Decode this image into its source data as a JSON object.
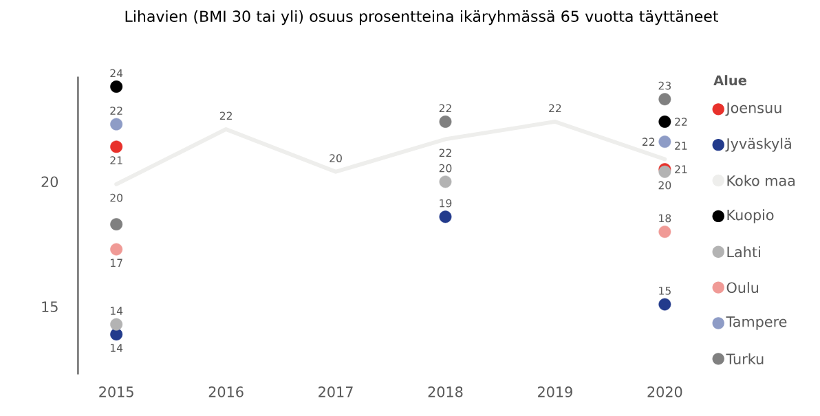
{
  "chart_data": {
    "type": "scatter",
    "title": "Lihavien (BMI 30 tai yli) osuus prosentteina ikäryhmässä 65 vuotta täyttäneet",
    "legend_title": "Alue",
    "categories": [
      "2015",
      "2016",
      "2017",
      "2018",
      "2019",
      "2020"
    ],
    "ylim": [
      12.3,
      24.2
    ],
    "yticks": [
      15,
      20
    ],
    "grid": false,
    "legend": "right",
    "marker": "circle",
    "series": [
      {
        "name": "Joensuu",
        "color": "#e8312b",
        "values": [
          21.4,
          null,
          null,
          null,
          null,
          20.5
        ],
        "value_labels": [
          "21",
          null,
          null,
          null,
          null,
          "21"
        ]
      },
      {
        "name": "Jyväskylä",
        "color": "#233b8c",
        "values": [
          13.9,
          null,
          null,
          18.6,
          null,
          15.1
        ],
        "value_labels": [
          "14",
          null,
          null,
          "19",
          null,
          "15"
        ]
      },
      {
        "name": "Koko maa",
        "color": "#eeeeec",
        "type": "line",
        "marker": "none",
        "values": [
          19.9,
          22.1,
          20.4,
          21.7,
          22.4,
          20.9
        ],
        "value_labels": [
          "20",
          "22",
          "20",
          "22",
          "22",
          "21"
        ]
      },
      {
        "name": "Kuopio",
        "color": "#000000",
        "values": [
          23.8,
          null,
          null,
          null,
          null,
          22.4
        ],
        "value_labels": [
          "24",
          null,
          null,
          null,
          null,
          "22"
        ]
      },
      {
        "name": "Lahti",
        "color": "#b3b3b3",
        "values": [
          14.3,
          null,
          null,
          20.0,
          null,
          20.4
        ],
        "value_labels": [
          "14",
          null,
          null,
          "20",
          null,
          "20"
        ]
      },
      {
        "name": "Oulu",
        "color": "#f09a96",
        "values": [
          17.3,
          null,
          null,
          null,
          null,
          18.0
        ],
        "value_labels": [
          "17",
          null,
          null,
          null,
          null,
          "18"
        ]
      },
      {
        "name": "Tampere",
        "color": "#8e9cc6",
        "values": [
          22.3,
          null,
          null,
          null,
          null,
          21.6
        ],
        "value_labels": [
          "22",
          null,
          null,
          null,
          null,
          "22"
        ]
      },
      {
        "name": "Turku",
        "color": "#808080",
        "values": [
          18.3,
          null,
          null,
          22.4,
          null,
          23.3
        ],
        "value_labels": [
          null,
          null,
          null,
          "22",
          null,
          "23"
        ]
      }
    ]
  }
}
